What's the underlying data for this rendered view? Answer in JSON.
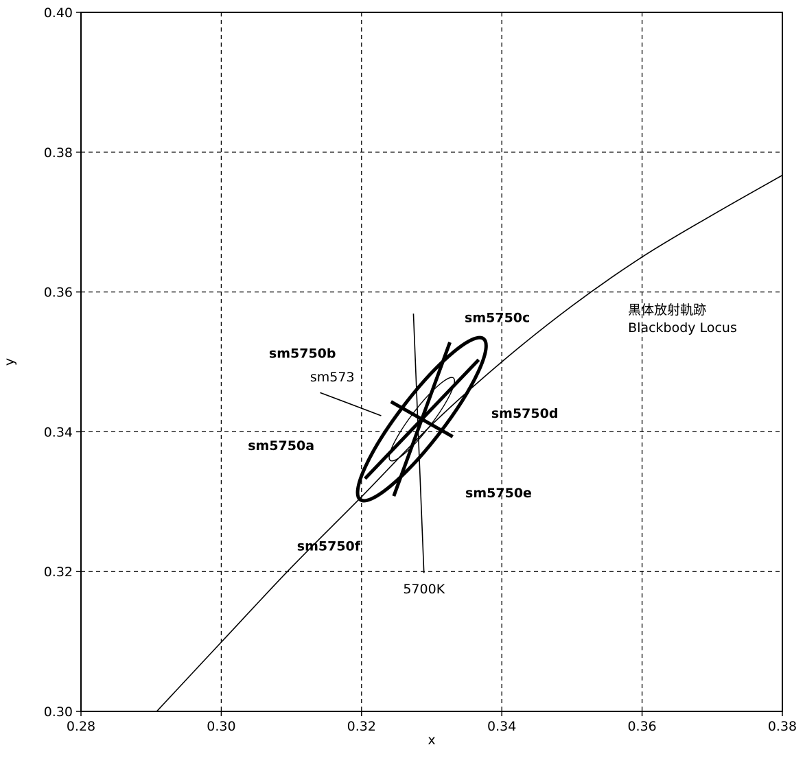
{
  "chart_data": {
    "type": "scatter",
    "title": "",
    "xlabel": "x",
    "ylabel": "y",
    "xlim": [
      0.28,
      0.38
    ],
    "ylim": [
      0.3,
      0.4
    ],
    "x_ticks": [
      0.28,
      0.3,
      0.32,
      0.34,
      0.36,
      0.38
    ],
    "y_ticks": [
      0.3,
      0.32,
      0.34,
      0.36,
      0.38,
      0.4
    ],
    "x_tick_labels": [
      "0.28",
      "0.30",
      "0.32",
      "0.34",
      "0.36",
      "0.38"
    ],
    "y_tick_labels": [
      "0.30",
      "0.32",
      "0.34",
      "0.36",
      "0.38",
      "0.40"
    ],
    "grid": "dashed",
    "blackbody_locus": {
      "label_line1": "黒体放射軌跡",
      "label_line2": "Blackbody Locus",
      "points": [
        [
          0.2908,
          0.3
        ],
        [
          0.3,
          0.3099
        ],
        [
          0.31,
          0.3206
        ],
        [
          0.32,
          0.3307
        ],
        [
          0.33,
          0.341
        ],
        [
          0.34,
          0.35
        ],
        [
          0.35,
          0.358
        ],
        [
          0.36,
          0.365
        ],
        [
          0.37,
          0.371
        ],
        [
          0.38,
          0.3767
        ]
      ]
    },
    "isotemperature_line": {
      "label": "5700K",
      "from": [
        0.3274,
        0.3569
      ],
      "to": [
        0.3289,
        0.3198
      ]
    },
    "outer_ellipse": {
      "center": [
        0.3286,
        0.3418
      ],
      "semi_major_end": [
        0.3374,
        0.3533
      ],
      "semi_minor_end": [
        0.326,
        0.3437
      ]
    },
    "inner_ellipse": {
      "label": "sm573",
      "center": [
        0.3286,
        0.3418
      ],
      "semi_major_end": [
        0.3331,
        0.3477
      ],
      "semi_minor_end": [
        0.3274,
        0.3427
      ]
    },
    "segments": [
      {
        "name": "sm5750a",
        "label": "sm5750a",
        "from": [
          0.3205,
          0.3333
        ],
        "to": [
          0.3286,
          0.3418
        ],
        "label_at": [
          0.3038,
          0.3374
        ],
        "align": "start"
      },
      {
        "name": "sm5750b",
        "label": "sm5750b",
        "from": [
          0.3242,
          0.3443
        ],
        "to": [
          0.3286,
          0.3418
        ],
        "label_at": [
          0.3068,
          0.3506
        ],
        "align": "start"
      },
      {
        "name": "sm5750c",
        "label": "sm5750c",
        "from": [
          0.3326,
          0.3528
        ],
        "to": [
          0.3286,
          0.3418
        ],
        "label_at": [
          0.3347,
          0.3557
        ],
        "align": "start"
      },
      {
        "name": "sm5750d",
        "label": "sm5750d",
        "from": [
          0.3367,
          0.3503
        ],
        "to": [
          0.3286,
          0.3418
        ],
        "label_at": [
          0.3385,
          0.342
        ],
        "align": "start"
      },
      {
        "name": "sm5750e",
        "label": "sm5750e",
        "from": [
          0.333,
          0.3393
        ],
        "to": [
          0.3286,
          0.3418
        ],
        "label_at": [
          0.3348,
          0.3306
        ],
        "align": "start"
      },
      {
        "name": "sm5750f",
        "label": "sm5750f",
        "from": [
          0.3246,
          0.3308
        ],
        "to": [
          0.3286,
          0.3418
        ],
        "label_at": [
          0.3108,
          0.323
        ],
        "align": "start"
      }
    ],
    "sm573_label_at": [
      0.319,
      0.3472
    ],
    "sm573_leader": {
      "from": [
        0.3141,
        0.3456
      ],
      "to": [
        0.3228,
        0.3423
      ]
    },
    "locus_label_at": [
      0.358,
      0.3568
    ]
  }
}
